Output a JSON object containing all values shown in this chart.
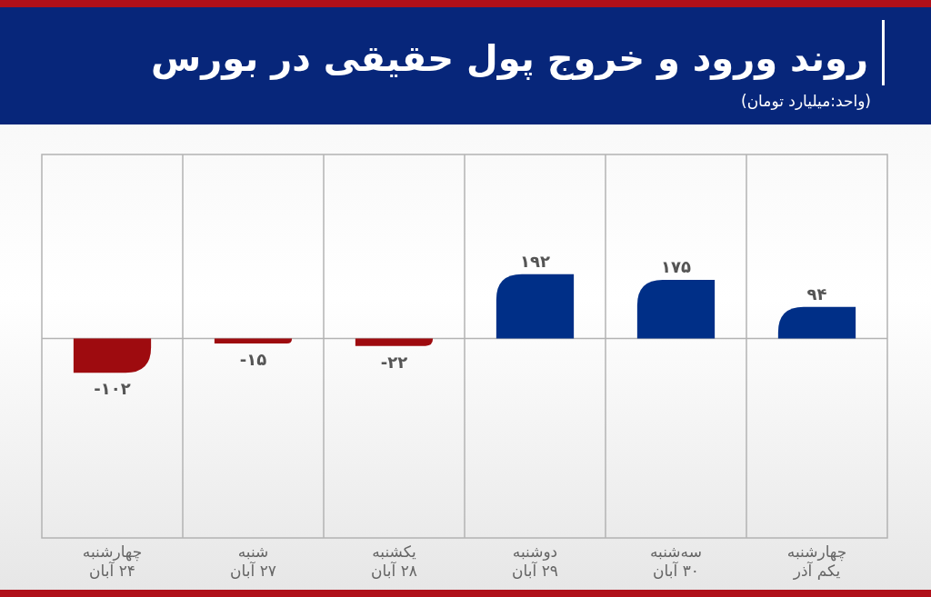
{
  "chart_data": {
    "type": "bar",
    "title": "روند ورود و خروج پول حقیقی در بورس",
    "subtitle": "(واحد:میلیارد تومان)",
    "categories": [
      "چهارشنبه\n۲۴ آبان",
      "شنبه\n۲۷ آبان",
      "یکشنبه\n۲۸ آبان",
      "دوشنبه\n۲۹ آبان",
      "سه‌شنبه\n۳۰ آبان",
      "چهارشنبه\nیکم آذر"
    ],
    "values": [
      -102,
      -15,
      -22,
      192,
      175,
      94
    ],
    "colors": [
      "#9e0b0f",
      "#9e0b0f",
      "#9e0b0f",
      "#002f87",
      "#002f87",
      "#002f87"
    ],
    "value_labels": [
      "-۱۰۲",
      "-۱۵",
      "-۲۲",
      "۱۹۲",
      "۱۷۵",
      "۹۴"
    ]
  }
}
